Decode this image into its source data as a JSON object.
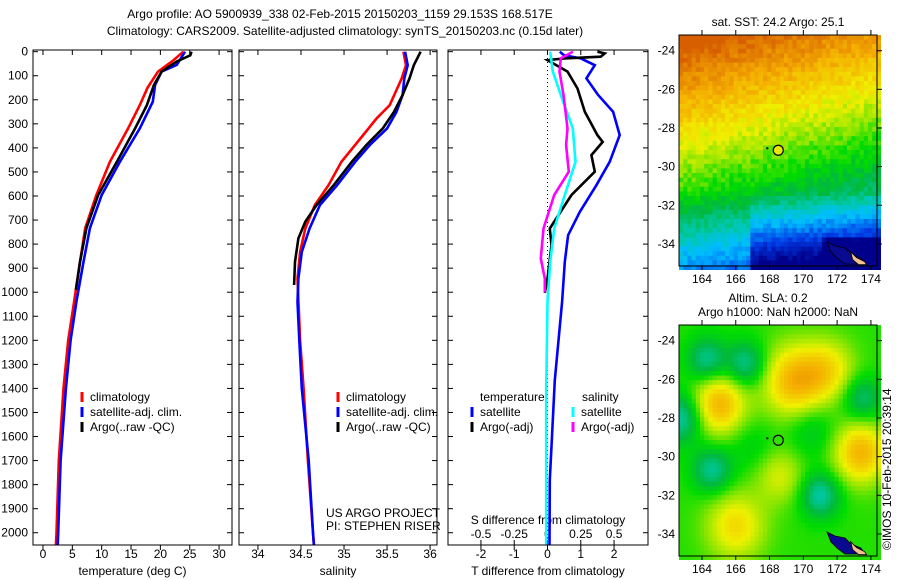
{
  "title_lines": [
    "Argo profile: AO 5900939_338 02-Feb-2015 20150203_1159 29.153S 168.517E",
    "Climatology: CARS2009. Satellite-adjusted climatology: synTS_20150203.nc (0.15d later)"
  ],
  "footer": {
    "project": "US ARGO PROJECT",
    "pi": "PI: STEPHEN RISER",
    "credit": "©IMOS 10-Feb-2015 20:39:14"
  },
  "colors": {
    "climatology": "#ff0000",
    "satellite": "#0000ff",
    "argo": "#000000",
    "salinity_satellite": "#00ffff",
    "salinity_argo": "#ff00ff"
  },
  "chart_data": [
    {
      "id": "temperature",
      "type": "line",
      "title": "",
      "xlabel": "temperature (deg C)",
      "ylabel": "",
      "xlim": [
        -1.7,
        32.2
      ],
      "ylim": [
        2051,
        -7
      ],
      "xticks": [
        0,
        5,
        10,
        15,
        20,
        25,
        30
      ],
      "xtick_labels": [
        "0",
        "5",
        "10",
        "15",
        "20",
        "25",
        "30"
      ],
      "yticks": [
        0,
        100,
        200,
        300,
        400,
        500,
        600,
        700,
        800,
        900,
        1000,
        1100,
        1200,
        1300,
        1400,
        1500,
        1600,
        1700,
        1800,
        1900,
        2000
      ],
      "ytick_labels": [
        "0",
        "100",
        "200",
        "300",
        "400",
        "500",
        "600",
        "700",
        "800",
        "900",
        "1000",
        "1100",
        "1200",
        "1300",
        "1400",
        "1500",
        "1600",
        "1700",
        "1800",
        "1900",
        "2000"
      ],
      "legend": [
        "climatology",
        "satellite-adj. clim.",
        "Argo(..raw -QC)"
      ],
      "legend_placement": "lower-middle",
      "series": [
        {
          "name": "climatology",
          "color": "#ff0000",
          "depth": [
            0,
            40,
            83,
            150,
            222,
            319,
            458,
            596,
            734,
            874,
            1040,
            1200,
            1400,
            1700,
            2000,
            2051
          ],
          "values": [
            23.9,
            22.0,
            19.6,
            17.8,
            16.5,
            14.5,
            11.4,
            9.1,
            7.2,
            6.3,
            5.3,
            4.3,
            3.5,
            2.7,
            2.3,
            2.2
          ]
        },
        {
          "name": "satellite-adj. clim.",
          "color": "#0000ff",
          "depth": [
            0,
            55,
            83,
            138,
            208,
            319,
            458,
            596,
            734,
            874,
            1040,
            1200,
            1400,
            1700,
            2000,
            2051
          ],
          "values": [
            24.2,
            22.8,
            20.2,
            19.1,
            18.7,
            16.5,
            13.1,
            10.0,
            8.0,
            6.9,
            5.7,
            4.7,
            3.9,
            3.0,
            2.6,
            2.5
          ]
        },
        {
          "name": "Argo(..raw -QC)",
          "color": "#000000",
          "depth": [
            0,
            15,
            41,
            83,
            139,
            222,
            319,
            458,
            596,
            734,
            874,
            990
          ],
          "values": [
            25.3,
            25.1,
            22.8,
            20.2,
            18.9,
            17.7,
            15.7,
            12.6,
            9.4,
            7.4,
            6.3,
            5.6
          ]
        }
      ]
    },
    {
      "id": "salinity",
      "type": "line",
      "title": "",
      "xlabel": "salinity",
      "ylabel": "",
      "xlim": [
        33.78,
        36.08
      ],
      "ylim": [
        2051,
        -7
      ],
      "xticks": [
        34,
        34.5,
        35,
        35.5,
        36
      ],
      "xtick_labels": [
        "34",
        "34.5",
        "35",
        "35.5",
        "36"
      ],
      "yticks": [
        0,
        100,
        200,
        300,
        400,
        500,
        600,
        700,
        800,
        900,
        1000,
        1100,
        1200,
        1300,
        1400,
        1500,
        1600,
        1700,
        1800,
        1900,
        2000
      ],
      "legend": [
        "climatology",
        "satellite-adj. clim.",
        "Argo(..raw -QC)"
      ],
      "legend_placement": "lower-middle",
      "series": [
        {
          "name": "climatology",
          "color": "#ff0000",
          "depth": [
            0,
            56,
            111,
            222,
            277,
            361,
            458,
            555,
            638,
            735,
            832,
            943,
            1200,
            1400,
            1700,
            2000,
            2051
          ],
          "values": [
            35.69,
            35.72,
            35.67,
            35.53,
            35.38,
            35.19,
            34.97,
            34.82,
            34.66,
            34.55,
            34.49,
            34.46,
            34.49,
            34.53,
            34.58,
            34.64,
            34.65
          ]
        },
        {
          "name": "satellite-adj. clim.",
          "color": "#0000ff",
          "depth": [
            0,
            56,
            111,
            180,
            250,
            319,
            388,
            458,
            555,
            638,
            735,
            832,
            943,
            1040,
            1200,
            1400,
            1700,
            2000,
            2051
          ],
          "values": [
            35.71,
            35.74,
            35.7,
            35.68,
            35.61,
            35.5,
            35.3,
            35.13,
            34.92,
            34.72,
            34.6,
            34.51,
            34.47,
            34.46,
            34.48,
            34.51,
            34.59,
            34.64,
            34.65
          ]
        },
        {
          "name": "Argo(..raw -QC)",
          "color": "#000000",
          "depth": [
            0,
            56,
            111,
            180,
            250,
            319,
            388,
            458,
            555,
            638,
            707,
            776,
            874,
            970
          ],
          "values": [
            35.89,
            35.81,
            35.76,
            35.68,
            35.58,
            35.45,
            35.26,
            35.09,
            34.88,
            34.68,
            34.55,
            34.47,
            34.43,
            34.42
          ]
        }
      ]
    },
    {
      "id": "difference",
      "type": "line",
      "title": "",
      "xlabel": "T difference from climatology",
      "secondary_xlabel": "S difference from climatology",
      "xlim": [
        -2.99,
        3.02
      ],
      "secondary_xlim": [
        -0.7475,
        0.755
      ],
      "ylim": [
        2051,
        -7
      ],
      "xticks": [
        -2,
        -1,
        0,
        1,
        2
      ],
      "xtick_labels": [
        "-2",
        "-1",
        "0",
        "1",
        "2"
      ],
      "secondary_xticks": [
        -0.5,
        -0.25,
        0,
        0.25,
        0.5
      ],
      "secondary_xtick_labels": [
        "-0.5",
        "-0.25",
        "0",
        "0.25",
        "0.5"
      ],
      "yticks": [
        0,
        100,
        200,
        300,
        400,
        500,
        600,
        700,
        800,
        900,
        1000,
        1100,
        1200,
        1300,
        1400,
        1500,
        1600,
        1700,
        1800,
        1900,
        2000
      ],
      "zero_line": "dotted",
      "legend_groups": [
        {
          "heading": "temperature",
          "entries": [
            "satellite",
            "Argo(-adj)"
          ]
        },
        {
          "heading": "salinity",
          "entries": [
            "satellite",
            "Argo(-adj)"
          ]
        }
      ],
      "series": [
        {
          "name": "temperature satellite",
          "axis": "T",
          "color": "#0000ff",
          "depth": [
            0,
            15,
            28,
            56,
            111,
            180,
            250,
            347,
            458,
            555,
            666,
            763,
            874,
            1040,
            1366,
            1781,
            2051
          ],
          "values": [
            0.37,
            0.5,
            1.0,
            1.42,
            1.17,
            1.52,
            1.97,
            2.17,
            1.87,
            1.47,
            0.97,
            0.62,
            0.52,
            0.44,
            0.22,
            0.07,
            0.06
          ]
        },
        {
          "name": "temperature Argo(-adj)",
          "axis": "T",
          "color": "#000000",
          "depth": [
            0,
            7,
            21,
            28,
            35,
            83,
            153,
            250,
            347,
            375,
            430,
            499,
            596,
            735,
            804,
            943,
            1003
          ],
          "values": [
            1.5,
            1.72,
            1.6,
            0.5,
            0.0,
            0.6,
            0.9,
            1.12,
            1.5,
            1.66,
            1.32,
            1.42,
            0.72,
            0.07,
            0.12,
            0.0,
            -0.08
          ]
        },
        {
          "name": "salinity satellite",
          "axis": "S",
          "color": "#00ffff",
          "depth": [
            0,
            83,
            180,
            319,
            458,
            596,
            735,
            874,
            1040,
            1400,
            1800,
            2051
          ],
          "values": [
            0.02,
            0.04,
            0.1,
            0.19,
            0.21,
            0.13,
            0.05,
            0.02,
            0.0,
            -0.01,
            -0.01,
            -0.01
          ]
        },
        {
          "name": "salinity Argo(-adj)",
          "axis": "S",
          "color": "#ff00ff",
          "depth": [
            0,
            28,
            83,
            180,
            319,
            388,
            499,
            596,
            735,
            860,
            943,
            1000
          ],
          "values": [
            0.19,
            0.1,
            0.09,
            0.12,
            0.15,
            0.14,
            0.16,
            0.05,
            -0.03,
            -0.05,
            -0.02,
            -0.02
          ]
        }
      ]
    },
    {
      "id": "sst_map",
      "type": "heatmap",
      "title_lines": [
        "sat. SST: 24.2  Argo: 25.1"
      ],
      "xlim": [
        162.64,
        174.36
      ],
      "ylim": [
        -23.19,
        -35.14
      ],
      "xticks": [
        164,
        166,
        168,
        170,
        172,
        174
      ],
      "xtick_labels": [
        "164",
        "166",
        "168",
        "170",
        "172",
        "174"
      ],
      "yticks": [
        -24,
        -26,
        -28,
        -30,
        -32,
        -34
      ],
      "ytick_labels": [
        "-24",
        "-26",
        "-28",
        "-30",
        "-32",
        "-34"
      ],
      "argo_position": {
        "lon": 168.517,
        "lat": -29.153
      }
    },
    {
      "id": "sla_map",
      "type": "heatmap",
      "title_lines": [
        "Altim. SLA: 0.2",
        "Argo h1000: NaN h2000: NaN"
      ],
      "xlim": [
        162.64,
        174.36
      ],
      "ylim": [
        -23.19,
        -35.14
      ],
      "xticks": [
        164,
        166,
        168,
        170,
        172,
        174
      ],
      "xtick_labels": [
        "164",
        "166",
        "168",
        "170",
        "172",
        "174"
      ],
      "yticks": [
        -24,
        -26,
        -28,
        -30,
        -32,
        -34
      ],
      "ytick_labels": [
        "-24",
        "-26",
        "-28",
        "-30",
        "-32",
        "-34"
      ],
      "argo_position": {
        "lon": 168.517,
        "lat": -29.153
      }
    }
  ]
}
